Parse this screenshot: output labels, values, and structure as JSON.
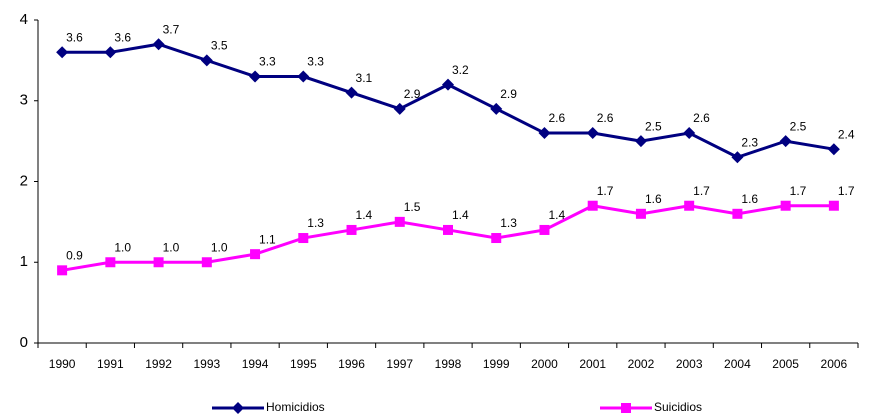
{
  "chart_data": {
    "type": "line",
    "categories": [
      "1990",
      "1991",
      "1992",
      "1993",
      "1994",
      "1995",
      "1996",
      "1997",
      "1998",
      "1999",
      "2000",
      "2001",
      "2002",
      "2003",
      "2004",
      "2005",
      "2006"
    ],
    "series": [
      {
        "name": "Homicidios",
        "color": "#000080",
        "marker": "diamond",
        "values": [
          3.6,
          3.6,
          3.7,
          3.5,
          3.3,
          3.3,
          3.1,
          2.9,
          3.2,
          2.9,
          2.6,
          2.6,
          2.5,
          2.6,
          2.3,
          2.5,
          2.4
        ],
        "value_labels": [
          "3.6",
          "3.6",
          "3.7",
          "3.5",
          "3.3",
          "3.3",
          "3.1",
          "2.9",
          "3.2",
          "2.9",
          "2.6",
          "2.6",
          "2.5",
          "2.6",
          "2.3",
          "2.5",
          "2.4"
        ]
      },
      {
        "name": "Suicidios",
        "color": "#ff00ff",
        "marker": "square",
        "values": [
          0.9,
          1,
          1,
          1,
          1.1,
          1.3,
          1.4,
          1.5,
          1.4,
          1.3,
          1.4,
          1.7,
          1.6,
          1.7,
          1.6,
          1.7,
          1.7
        ],
        "value_labels": [
          "0.9",
          "1.0",
          "1.0",
          "1.0",
          "1.1",
          "1.3",
          "1.4",
          "1.5",
          "1.4",
          "1.3",
          "1.4",
          "1.7",
          "1.6",
          "1.7",
          "1.6",
          "1.7",
          "1.7"
        ]
      }
    ],
    "ylim": [
      0,
      4
    ],
    "yticks": [
      0,
      1,
      2,
      3,
      4
    ],
    "grid": false
  }
}
